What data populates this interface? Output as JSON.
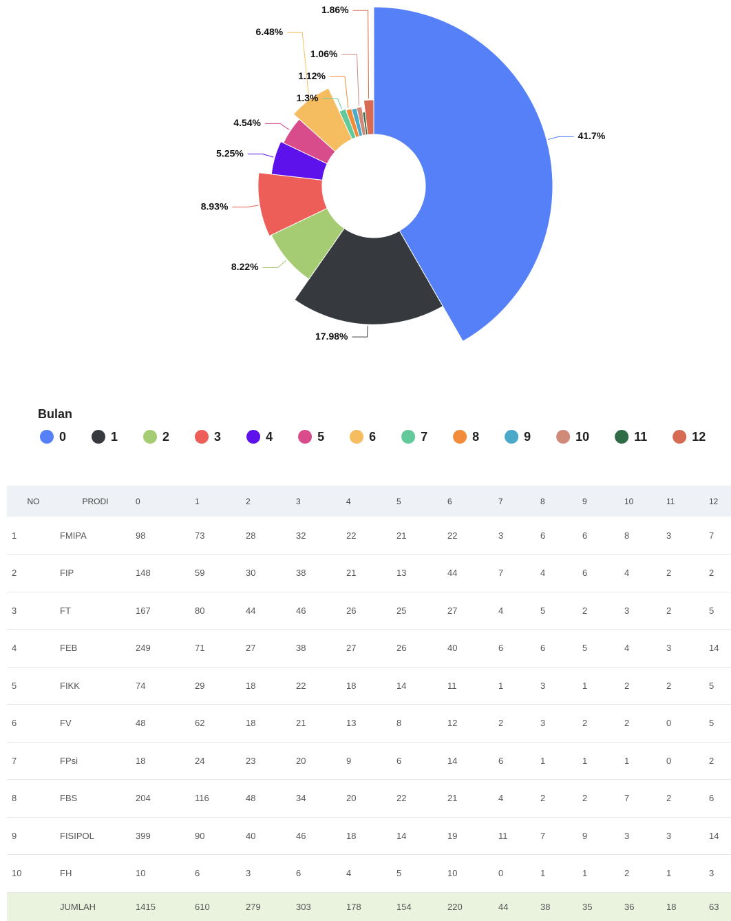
{
  "chart_data": {
    "type": "pie",
    "rose": true,
    "categories": [
      "0",
      "1",
      "2",
      "3",
      "4",
      "5",
      "6",
      "7",
      "8",
      "9",
      "10",
      "11",
      "12"
    ],
    "values": [
      41.7,
      17.98,
      8.22,
      8.93,
      5.25,
      4.54,
      6.48,
      1.3,
      1.12,
      1.03,
      1.06,
      0.53,
      1.86
    ],
    "value_labels": [
      "41.7%",
      "17.98%",
      "8.22%",
      "8.93%",
      "5.25%",
      "4.54%",
      "6.48%",
      "1.3%",
      "1.12%",
      null,
      "1.06%",
      null,
      "1.86%"
    ],
    "colors": [
      "#5580f7",
      "#363a3f",
      "#a5cc72",
      "#ee5e58",
      "#5e12eb",
      "#d94c8c",
      "#f6bd60",
      "#62c99b",
      "#f08c3a",
      "#4aa8c8",
      "#d08a7a",
      "#2f6b45",
      "#d66a52"
    ],
    "legend_title": "Bulan",
    "legend": "bottom-left"
  },
  "table": {
    "header": [
      "NO",
      "PRODI",
      "0",
      "1",
      "2",
      "3",
      "4",
      "5",
      "6",
      "7",
      "8",
      "9",
      "10",
      "11",
      "12"
    ],
    "rows": [
      [
        1,
        "FMIPA",
        98,
        73,
        28,
        32,
        22,
        21,
        22,
        3,
        6,
        6,
        8,
        3,
        7
      ],
      [
        2,
        "FIP",
        148,
        59,
        30,
        38,
        21,
        13,
        44,
        7,
        4,
        6,
        4,
        2,
        2
      ],
      [
        3,
        "FT",
        167,
        80,
        44,
        46,
        26,
        25,
        27,
        4,
        5,
        2,
        3,
        2,
        5
      ],
      [
        4,
        "FEB",
        249,
        71,
        27,
        38,
        27,
        26,
        40,
        6,
        6,
        5,
        4,
        3,
        14
      ],
      [
        5,
        "FIKK",
        74,
        29,
        18,
        22,
        18,
        14,
        11,
        1,
        3,
        1,
        2,
        2,
        5
      ],
      [
        6,
        "FV",
        48,
        62,
        18,
        21,
        13,
        8,
        12,
        2,
        3,
        2,
        2,
        0,
        5
      ],
      [
        7,
        "FPsi",
        18,
        24,
        23,
        20,
        9,
        6,
        14,
        6,
        1,
        1,
        1,
        0,
        2
      ],
      [
        8,
        "FBS",
        204,
        116,
        48,
        34,
        20,
        22,
        21,
        4,
        2,
        2,
        7,
        2,
        6
      ],
      [
        9,
        "FISIPOL",
        399,
        90,
        40,
        46,
        18,
        14,
        19,
        11,
        7,
        9,
        3,
        3,
        14
      ],
      [
        10,
        "FH",
        10,
        6,
        3,
        6,
        4,
        5,
        10,
        0,
        1,
        1,
        2,
        1,
        3
      ]
    ],
    "footer": {
      "label": "JUMLAH",
      "values": [
        1415,
        610,
        279,
        303,
        178,
        154,
        220,
        44,
        38,
        35,
        36,
        18,
        63
      ]
    }
  }
}
